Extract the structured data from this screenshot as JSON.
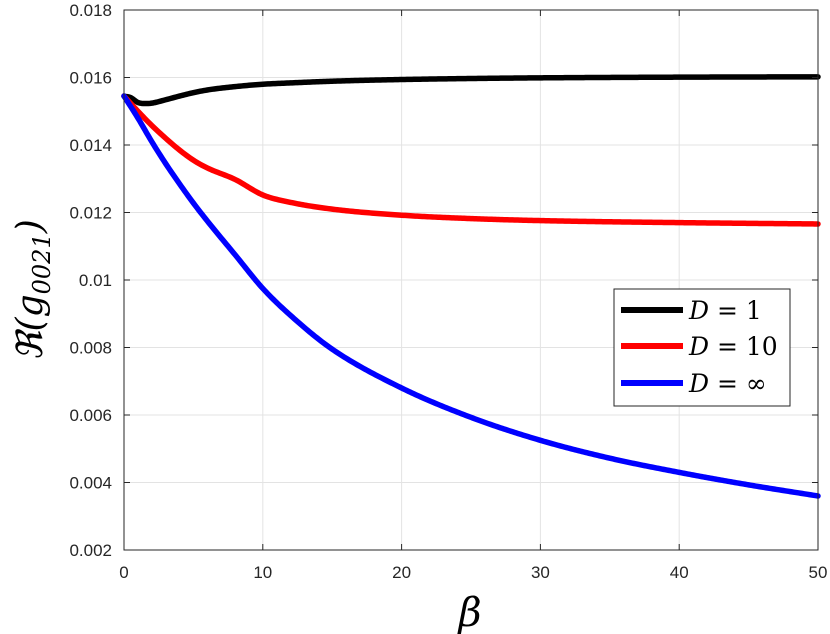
{
  "chart_data": {
    "type": "line",
    "title": "",
    "xlabel": "β",
    "ylabel": "ℜ(g0021)",
    "ylabel_main": "ℜ(g",
    "ylabel_sub": "0021",
    "ylabel_close": ")",
    "xlim": [
      0,
      50
    ],
    "ylim": [
      0.002,
      0.018
    ],
    "xticks": [
      0,
      10,
      20,
      30,
      40,
      50
    ],
    "xtick_labels": [
      "0",
      "10",
      "20",
      "30",
      "40",
      "50"
    ],
    "yticks": [
      0.002,
      0.004,
      0.006,
      0.008,
      0.01,
      0.012,
      0.014,
      0.016,
      0.018
    ],
    "ytick_labels": [
      "0.002",
      "0.004",
      "0.006",
      "0.008",
      "0.01",
      "0.012",
      "0.014",
      "0.016",
      "0.018"
    ],
    "grid": true,
    "legend_position": "right",
    "series": [
      {
        "name": "D = 1",
        "color": "#000000",
        "x": [
          0,
          0.5,
          1,
          1.5,
          2,
          3,
          4,
          5,
          6,
          8,
          10,
          12,
          15,
          20,
          25,
          30,
          40,
          50
        ],
        "y": [
          0.01545,
          0.0154,
          0.01526,
          0.01523,
          0.01524,
          0.01534,
          0.01545,
          0.01555,
          0.01563,
          0.01573,
          0.0158,
          0.01584,
          0.01589,
          0.01594,
          0.01597,
          0.01599,
          0.01601,
          0.01602
        ]
      },
      {
        "name": "D = 10",
        "color": "#ff0000",
        "x": [
          0,
          1,
          2,
          3,
          4,
          5,
          6,
          8,
          10,
          12,
          15,
          20,
          25,
          30,
          40,
          50
        ],
        "y": [
          0.01545,
          0.015,
          0.01458,
          0.0142,
          0.01385,
          0.01355,
          0.01332,
          0.01298,
          0.01252,
          0.0123,
          0.0121,
          0.01192,
          0.01182,
          0.01176,
          0.0117,
          0.01166
        ]
      },
      {
        "name": "D = ∞",
        "color": "#0000ff",
        "x": [
          0,
          1,
          2,
          3,
          4,
          5,
          6,
          8,
          10,
          12,
          15,
          20,
          25,
          30,
          35,
          40,
          45,
          50
        ],
        "y": [
          0.01545,
          0.0148,
          0.0141,
          0.01345,
          0.01285,
          0.01228,
          0.01175,
          0.01075,
          0.00975,
          0.00895,
          0.00795,
          0.0068,
          0.00593,
          0.00525,
          0.00472,
          0.0043,
          0.00393,
          0.0036
        ]
      }
    ],
    "legend_entries": [
      {
        "var": "D",
        "rel": " = ",
        "val": "1"
      },
      {
        "var": "D",
        "rel": " = ",
        "val": "10"
      },
      {
        "var": "D",
        "rel": " = ",
        "val": "∞"
      }
    ]
  }
}
